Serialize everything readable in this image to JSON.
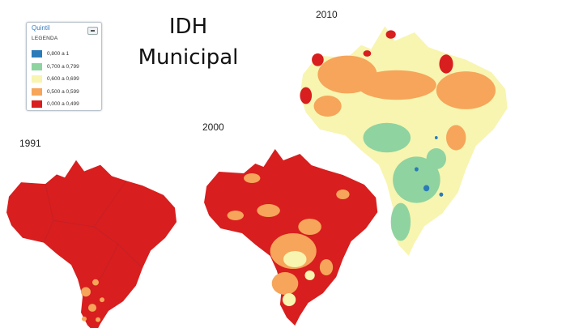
{
  "title": "IDH Municipal",
  "legend": {
    "header": "Quintil",
    "subtitle": "LEGENDA",
    "items": [
      {
        "label": "0,800 a 1",
        "color": "#2b7bb9"
      },
      {
        "label": "0,700 a 0,799",
        "color": "#8fd3a1"
      },
      {
        "label": "0,600 a 0,699",
        "color": "#f7f5b0"
      },
      {
        "label": "0,500 a 0,599",
        "color": "#f6a55a"
      },
      {
        "label": "0,000 a 0,499",
        "color": "#d81e1e"
      }
    ]
  },
  "maps": [
    {
      "year": "1991",
      "icon": "brazil-map-1991"
    },
    {
      "year": "2000",
      "icon": "brazil-map-2000"
    },
    {
      "year": "2010",
      "icon": "brazil-map-2010"
    }
  ]
}
